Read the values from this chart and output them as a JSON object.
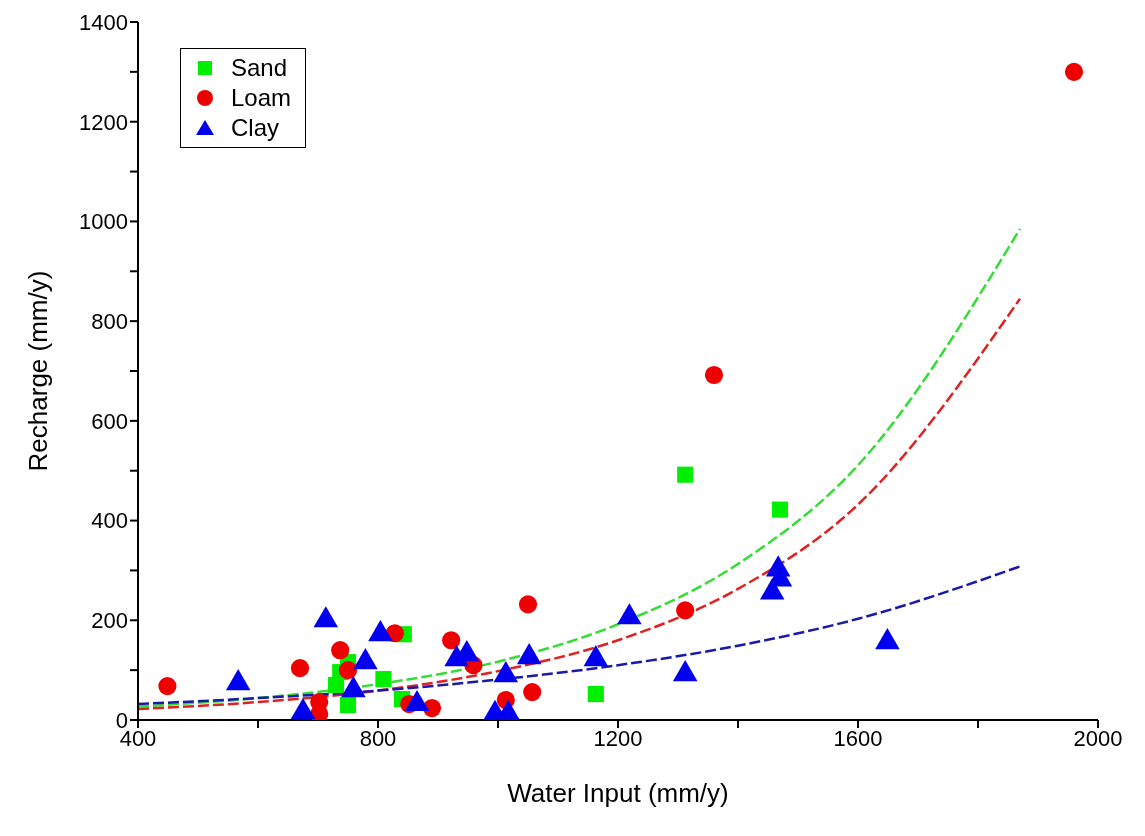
{
  "chart_data": {
    "type": "scatter",
    "xlabel": "Water Input (mm/y)",
    "ylabel": "Recharge (mm/y)",
    "xlim": [
      400,
      2000
    ],
    "xticks": [
      400,
      {
        "value": 600,
        "label": null
      },
      800,
      {
        "value": 1000,
        "label": null
      },
      1200,
      {
        "value": 1400,
        "label": null
      },
      1600,
      {
        "value": 1800,
        "label": null
      },
      2000
    ],
    "ylim": [
      0,
      1400
    ],
    "yticks": [
      0,
      {
        "value": 100,
        "label": null
      },
      200,
      {
        "value": 300,
        "label": null
      },
      400,
      {
        "value": 500,
        "label": null
      },
      600,
      {
        "value": 700,
        "label": null
      },
      800,
      {
        "value": 900,
        "label": null
      },
      1000,
      {
        "value": 1100,
        "label": null
      },
      1200,
      {
        "value": 1300,
        "label": null
      },
      1400
    ],
    "grid": false,
    "legend": "top left",
    "series": [
      {
        "name": "Sand",
        "marker": "square",
        "color": "#00ee00",
        "x": [
          843,
          737,
          730,
          750,
          750,
          809,
          840,
          1163,
          1312,
          1470
        ],
        "values": [
          172,
          96,
          70,
          116,
          30,
          82,
          42,
          52,
          492,
          422
        ]
      },
      {
        "name": "Loam",
        "marker": "circle",
        "color": "#ee0000",
        "x": [
          449,
          670,
          702,
          702,
          737,
          750,
          828,
          852,
          890,
          922,
          959,
          1013,
          1050,
          1057,
          1312,
          1360,
          1960
        ],
        "values": [
          68,
          104,
          36,
          12,
          140,
          100,
          174,
          32,
          24,
          160,
          110,
          40,
          232,
          56,
          220,
          692,
          1300
        ]
      },
      {
        "name": "Clay",
        "marker": "triangle",
        "color": "#0000ee",
        "x": [
          567,
          675,
          713,
          759,
          779,
          804,
          865,
          931,
          948,
          1013,
          995,
          1017,
          1052,
          1163,
          1219,
          1312,
          1467,
          1470,
          1457,
          1649
        ],
        "values": [
          74,
          16,
          200,
          60,
          116,
          172,
          32,
          122,
          132,
          90,
          12,
          12,
          126,
          122,
          206,
          92,
          302,
          282,
          256,
          156
        ]
      },
      {
        "type": "line",
        "line_style": "dashed",
        "marker": "none",
        "color": "#33dd33",
        "x": [
          400,
          600,
          800,
          1000,
          1200,
          1400,
          1600,
          1870
        ],
        "values": [
          27,
          44,
          72,
          117,
          192,
          313,
          511,
          985
        ]
      },
      {
        "type": "line",
        "line_style": "dashed",
        "marker": "none",
        "color": "#dd2222",
        "x": [
          400,
          600,
          800,
          1000,
          1200,
          1400,
          1600,
          1870
        ],
        "values": [
          22,
          36,
          59,
          98,
          160,
          263,
          432,
          845
        ]
      },
      {
        "type": "line",
        "line_style": "dashed",
        "marker": "none",
        "color": "#1a1aaa",
        "x": [
          400,
          600,
          800,
          950,
          1200,
          1400,
          1600,
          1870
        ],
        "values": [
          32,
          44,
          59,
          75,
          110,
          149,
          203,
          308
        ]
      }
    ]
  }
}
